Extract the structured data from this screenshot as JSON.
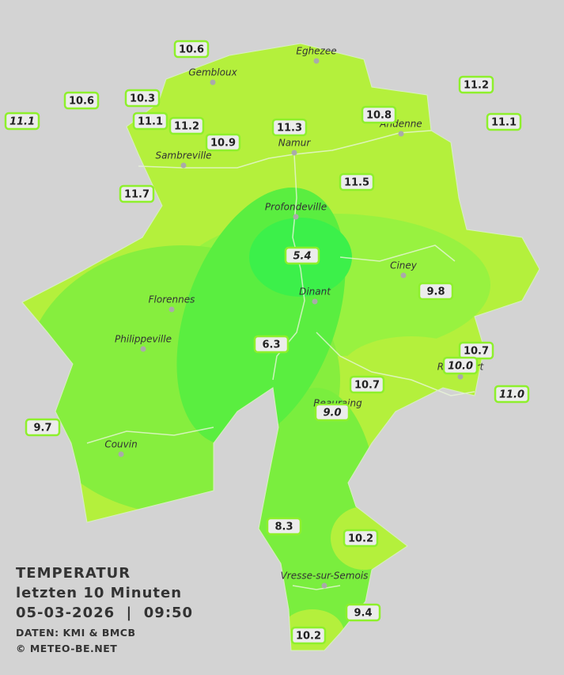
{
  "title": {
    "lines": [
      "TEMPERATUR",
      "letzten 10 Minuten",
      "05-03-2026  |  09:50"
    ],
    "credits": [
      "DATEN: KMI & BMCB",
      "© METEO-BE.NET"
    ]
  },
  "towns": [
    "Eghezee",
    "Gembloux",
    "Andenne",
    "Namur",
    "Sambreville",
    "Profondeville",
    "Ciney",
    "Dinant",
    "Florennes",
    "Philippeville",
    "Rochefort",
    "Beauraing",
    "Couvin",
    "Vresse-sur-Semois"
  ],
  "stations": [
    {
      "label": "10.6",
      "italic": false
    },
    {
      "label": "10.6",
      "italic": false
    },
    {
      "label": "10.3",
      "italic": false
    },
    {
      "label": "11.1",
      "italic": true
    },
    {
      "label": "11.1",
      "italic": false
    },
    {
      "label": "11.2",
      "italic": false
    },
    {
      "label": "10.9",
      "italic": false
    },
    {
      "label": "11.3",
      "italic": false
    },
    {
      "label": "10.8",
      "italic": false
    },
    {
      "label": "11.2",
      "italic": false
    },
    {
      "label": "11.1",
      "italic": false
    },
    {
      "label": "11.5",
      "italic": false
    },
    {
      "label": "11.7",
      "italic": false
    },
    {
      "label": "5.4",
      "italic": true
    },
    {
      "label": "9.8",
      "italic": false
    },
    {
      "label": "6.3",
      "italic": false
    },
    {
      "label": "10.7",
      "italic": false
    },
    {
      "label": "10.0",
      "italic": true
    },
    {
      "label": "10.7",
      "italic": false
    },
    {
      "label": "9.0",
      "italic": true
    },
    {
      "label": "11.0",
      "italic": true
    },
    {
      "label": "9.7",
      "italic": false
    },
    {
      "label": "8.3",
      "italic": false
    },
    {
      "label": "10.2",
      "italic": false
    },
    {
      "label": "9.4",
      "italic": false
    },
    {
      "label": "10.2",
      "italic": false
    }
  ]
}
